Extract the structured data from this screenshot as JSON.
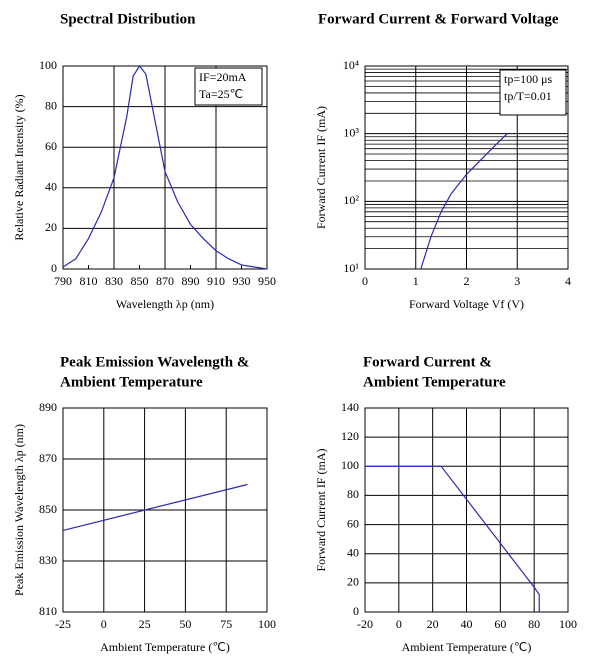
{
  "chart_data": [
    {
      "type": "line",
      "title": [
        "Spectral Distribution"
      ],
      "x": [
        790,
        800,
        810,
        820,
        830,
        840,
        845,
        850,
        855,
        860,
        870,
        880,
        890,
        900,
        910,
        920,
        930,
        940,
        950
      ],
      "values": [
        1,
        5,
        15,
        28,
        45,
        75,
        95,
        100,
        96,
        80,
        48,
        33,
        22,
        15,
        9,
        5,
        2,
        1,
        0
      ],
      "color": "#2b2bb0",
      "xlabel": "Wavelength λp (nm)",
      "ylabel": "Relative Radiant Intensity (%)",
      "xlim": [
        790,
        950
      ],
      "xticks": [
        790,
        810,
        830,
        850,
        870,
        890,
        910,
        930,
        950
      ],
      "ylim": [
        0,
        100
      ],
      "yticks": [
        0,
        20,
        40,
        60,
        80,
        100
      ],
      "grid": true,
      "annotations": [
        "IF=20mA",
        "Ta=25℃"
      ]
    },
    {
      "type": "line",
      "title": [
        "Forward Current & Forward Voltage"
      ],
      "x": [
        1.1,
        1.3,
        1.5,
        1.7,
        2.0,
        2.5,
        2.8
      ],
      "values": [
        10,
        30,
        70,
        130,
        250,
        600,
        1000
      ],
      "color": "#2b2bb0",
      "xlabel": "Forward Voltage Vf (V)",
      "ylabel": "Forward Current IF (mA)",
      "xlim": [
        0,
        4
      ],
      "xticks": [
        0,
        1,
        2,
        3,
        4
      ],
      "ylim": [
        10,
        10000
      ],
      "ylog": true,
      "yticks": [
        {
          "value": 10,
          "label": "10¹"
        },
        {
          "value": 100,
          "label": "10²"
        },
        {
          "value": 1000,
          "label": "10³"
        },
        {
          "value": 10000,
          "label": "10⁴"
        }
      ],
      "grid": true,
      "annotations": [
        "tp=100 μs",
        "tp/T=0.01"
      ]
    },
    {
      "type": "line",
      "title": [
        "Peak Emission Wavelength &",
        "Ambient Temperature"
      ],
      "x": [
        -25,
        88
      ],
      "values": [
        842,
        860
      ],
      "color": "#2b2bb0",
      "xlabel": "Ambient Temperature (℃)",
      "ylabel": "Peak Emission Wavelength λp (nm)",
      "xlim": [
        -25,
        100
      ],
      "xticks": [
        -25,
        0,
        25,
        50,
        75,
        100
      ],
      "ylim": [
        810,
        890
      ],
      "yticks": [
        810,
        830,
        850,
        870,
        890
      ],
      "grid": true
    },
    {
      "type": "line",
      "title": [
        "Forward Current &",
        "Ambient Temperature"
      ],
      "x": [
        -20,
        25,
        80,
        83,
        83
      ],
      "values": [
        100,
        100,
        17,
        12,
        0
      ],
      "color": "#2b2bb0",
      "xlabel": "Ambient Temperature (℃)",
      "ylabel": "Forward Current IF (mA)",
      "xlim": [
        -20,
        100
      ],
      "xticks": [
        -20,
        0,
        20,
        40,
        60,
        80,
        100
      ],
      "ylim": [
        0,
        140
      ],
      "yticks": [
        0,
        20,
        40,
        60,
        80,
        100,
        120,
        140
      ],
      "grid": true
    }
  ]
}
